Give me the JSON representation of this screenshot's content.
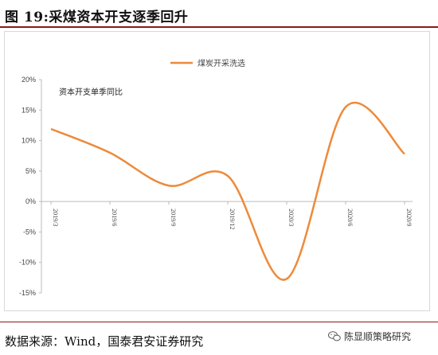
{
  "figure": {
    "title": "图 19:采煤资本开支逐季回升",
    "source": "数据来源：Wind，国泰君安证券研究",
    "watermark": "陈显顺策略研究",
    "colors": {
      "accent": "#8a1a1a",
      "line": "#ee8a3a"
    }
  },
  "chart_data": {
    "type": "line",
    "title": "",
    "xlabel": "",
    "ylabel": "",
    "annotation": "资本开支单季同比",
    "ylim": [
      -0.15,
      0.2
    ],
    "yticks": [
      0.2,
      0.15,
      0.1,
      0.05,
      0,
      -0.05,
      -0.1,
      -0.15
    ],
    "ytick_labels": [
      "20%",
      "15%",
      "10%",
      "5%",
      "0%",
      "-5%",
      "-10%",
      "-15%"
    ],
    "categories": [
      "2019/3",
      "2019/6",
      "2019/9",
      "2019/12",
      "2020/3",
      "2020/6",
      "2020/9"
    ],
    "grid": false,
    "legend": "top-center",
    "series": [
      {
        "name": "煤炭开采洗选",
        "color": "#ee8a3a",
        "values": [
          0.119,
          0.08,
          0.026,
          0.042,
          -0.127,
          0.155,
          0.078
        ]
      }
    ]
  }
}
